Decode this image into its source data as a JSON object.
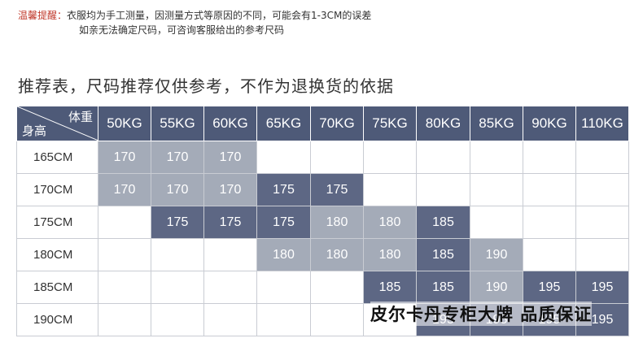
{
  "notice": {
    "label": "温馨提醒：",
    "line1": "衣服均为手工测量，因测量方式等原因的不同，可能会有1-3CM的误差",
    "line2": "如亲无法确定尺码，可咨询客服给出的参考尺码"
  },
  "heading": "推荐表，尺码推荐仅供参考，不作为退换货的依据",
  "table": {
    "corner_weight": "体重",
    "corner_height": "身高",
    "weights": [
      "50KG",
      "55KG",
      "60KG",
      "65KG",
      "70KG",
      "75KG",
      "80KG",
      "85KG",
      "90KG",
      "110KG"
    ],
    "rows": [
      {
        "height": "165CM",
        "cells": [
          "170",
          "170",
          "170",
          "",
          "",
          "",
          "",
          "",
          "",
          ""
        ],
        "shade": [
          1,
          1,
          1,
          0,
          0,
          0,
          0,
          0,
          0,
          0
        ]
      },
      {
        "height": "170CM",
        "cells": [
          "170",
          "170",
          "170",
          "175",
          "175",
          "",
          "",
          "",
          "",
          ""
        ],
        "shade": [
          1,
          1,
          1,
          2,
          2,
          0,
          0,
          0,
          0,
          0
        ]
      },
      {
        "height": "175CM",
        "cells": [
          "",
          "175",
          "175",
          "175",
          "180",
          "180",
          "185",
          "",
          "",
          ""
        ],
        "shade": [
          0,
          2,
          2,
          2,
          1,
          1,
          2,
          0,
          0,
          0
        ]
      },
      {
        "height": "180CM",
        "cells": [
          "",
          "",
          "",
          "180",
          "180",
          "180",
          "185",
          "190",
          "",
          ""
        ],
        "shade": [
          0,
          0,
          0,
          1,
          1,
          1,
          2,
          1,
          0,
          0
        ]
      },
      {
        "height": "185CM",
        "cells": [
          "",
          "",
          "",
          "",
          "",
          "185",
          "185",
          "190",
          "195",
          "195"
        ],
        "shade": [
          0,
          0,
          0,
          0,
          0,
          2,
          2,
          1,
          2,
          2
        ]
      },
      {
        "height": "190CM",
        "cells": [
          "",
          "",
          "",
          "",
          "",
          "",
          "195",
          "195",
          "195",
          "195"
        ],
        "shade": [
          0,
          0,
          0,
          0,
          0,
          0,
          2,
          2,
          2,
          2
        ]
      }
    ]
  },
  "colors": {
    "header_bg": "#4e5a78",
    "light_cell": "#a4abb8",
    "dark_cell": "#5d6784",
    "notice_label": "#c0392b"
  },
  "watermark": "皮尔卡丹专柜大牌 品质保证"
}
